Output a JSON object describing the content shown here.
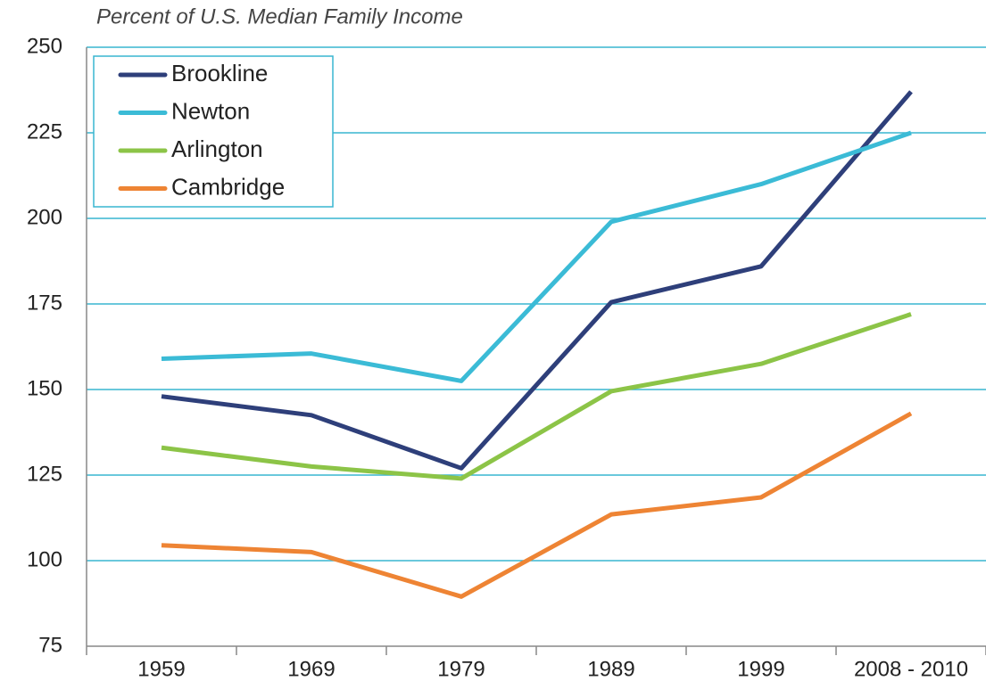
{
  "chart_data": {
    "type": "line",
    "title": "Percent of U.S. Median Family Income",
    "categories": [
      "1959",
      "1969",
      "1979",
      "1989",
      "1999",
      "2008 - 2010"
    ],
    "series": [
      {
        "name": "Brookline",
        "color": "#2e3f7a",
        "values": [
          148,
          142.5,
          127,
          175.5,
          186,
          237
        ]
      },
      {
        "name": "Newton",
        "color": "#3bbbd6",
        "values": [
          159,
          160.5,
          152.5,
          199,
          210,
          225
        ]
      },
      {
        "name": "Arlington",
        "color": "#8cc447",
        "values": [
          133,
          127.5,
          124,
          149.5,
          157.5,
          172
        ]
      },
      {
        "name": "Cambridge",
        "color": "#ee8434",
        "values": [
          104.5,
          102.5,
          89.5,
          113.5,
          118.5,
          143
        ]
      }
    ],
    "ylim": [
      75,
      250
    ],
    "yticks": [
      75,
      100,
      125,
      150,
      175,
      200,
      225,
      250
    ],
    "grid": true,
    "grid_color": "#39b5d0",
    "legend": "upper left"
  }
}
